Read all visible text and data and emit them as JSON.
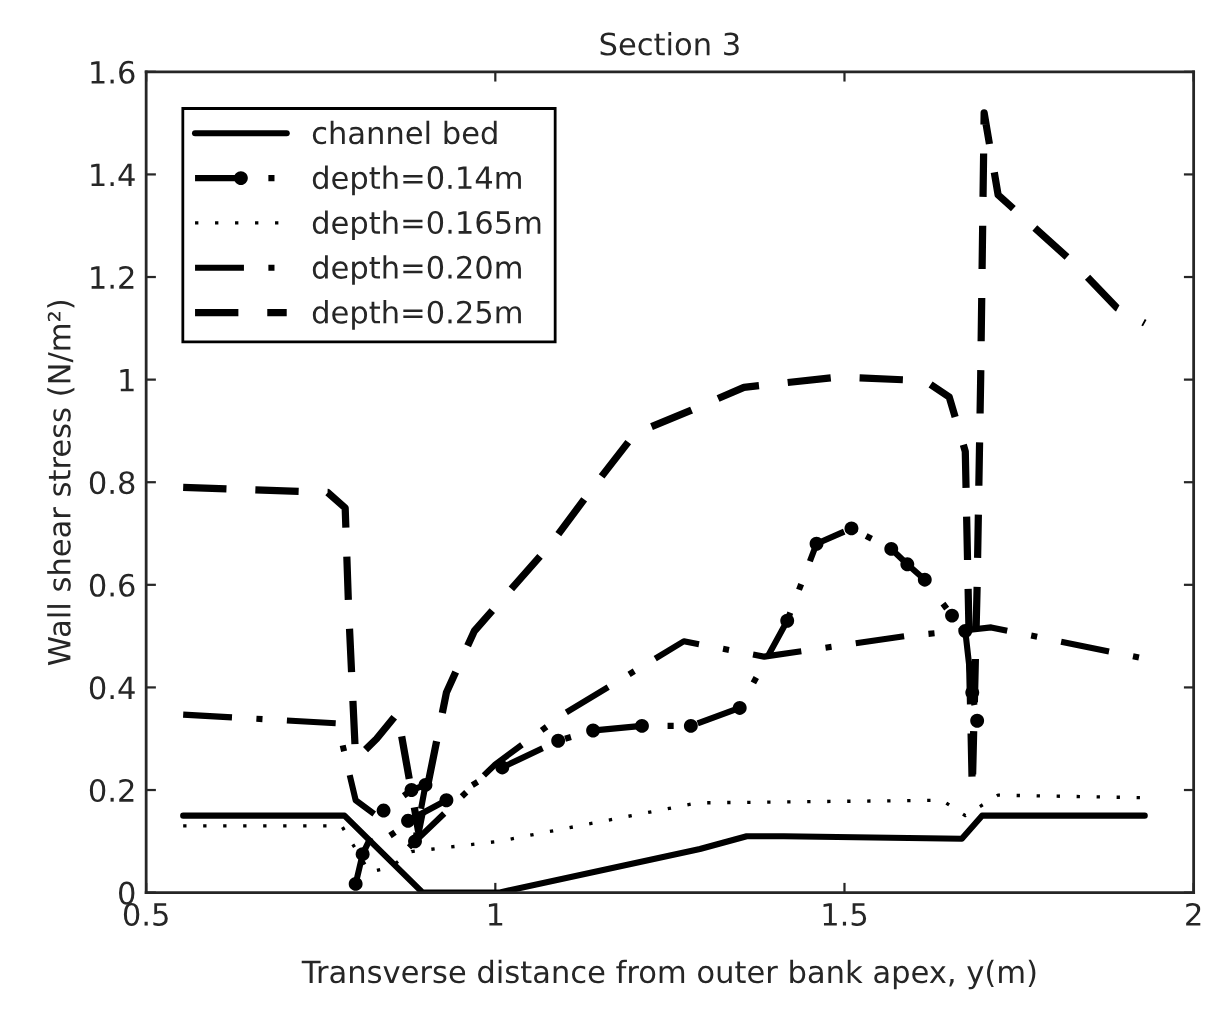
{
  "chart_data": {
    "type": "line",
    "title": "Section 3",
    "xlabel": "Transverse distance from outer bank apex, y(m)",
    "ylabel": "Wall shear stress (N/m²)",
    "xlim": [
      0.5,
      2
    ],
    "xticks": [
      0.5,
      1,
      1.5,
      2
    ],
    "ylim": [
      0,
      1.6
    ],
    "yticks": [
      0,
      0.2,
      0.4,
      0.6,
      0.8,
      1,
      1.2,
      1.4,
      1.6
    ],
    "grid": false,
    "legend": "top left",
    "series": [
      {
        "name": "channel bed",
        "color": "#000000",
        "line_style": "solid",
        "marker": "none",
        "x": [
          0.553,
          0.784,
          0.896,
          1.005,
          1.293,
          1.36,
          1.413,
          1.668,
          1.697,
          1.93
        ],
        "values": [
          0.15,
          0.15,
          0.0,
          0.0,
          0.085,
          0.11,
          0.11,
          0.105,
          0.15,
          0.15
        ]
      },
      {
        "name": "depth=0.14m",
        "color": "#000000",
        "line_style": "dashdot",
        "marker": "circle",
        "x": [
          0.8,
          0.81,
          0.84,
          0.88,
          0.9,
          0.885,
          0.875,
          0.93,
          1.01,
          1.09,
          1.14,
          1.21,
          1.28,
          1.35,
          1.418,
          1.46,
          1.51,
          1.567,
          1.59,
          1.615,
          1.654,
          1.673,
          1.683,
          1.69
        ],
        "values": [
          0.017,
          0.075,
          0.16,
          0.2,
          0.21,
          0.1,
          0.14,
          0.18,
          0.244,
          0.296,
          0.316,
          0.325,
          0.325,
          0.36,
          0.53,
          0.68,
          0.71,
          0.67,
          0.64,
          0.61,
          0.54,
          0.51,
          0.39,
          0.335
        ]
      },
      {
        "name": "depth=0.165m",
        "color": "#000000",
        "line_style": "dotted",
        "marker": "none",
        "x": [
          0.553,
          0.78,
          0.82,
          0.85,
          0.88,
          1.005,
          1.29,
          1.64,
          1.673,
          1.72,
          1.93
        ],
        "values": [
          0.13,
          0.13,
          0.04,
          0.05,
          0.08,
          0.1,
          0.175,
          0.18,
          0.15,
          0.19,
          0.185
        ]
      },
      {
        "name": "depth=0.20m",
        "color": "#000000",
        "line_style": "dashdot",
        "marker": "none",
        "x": [
          0.553,
          0.774,
          0.8,
          0.84,
          0.87,
          1.0,
          1.1,
          1.27,
          1.385,
          1.587,
          1.663,
          1.71,
          1.93
        ],
        "values": [
          0.347,
          0.33,
          0.18,
          0.14,
          0.08,
          0.25,
          0.35,
          0.49,
          0.46,
          0.5,
          0.51,
          0.517,
          0.456
        ]
      },
      {
        "name": "depth=0.25m",
        "color": "#000000",
        "line_style": "dashed",
        "marker": "none",
        "x": [
          0.553,
          0.76,
          0.785,
          0.79,
          0.8,
          0.83,
          0.86,
          0.89,
          0.93,
          0.97,
          1.08,
          1.14,
          1.2,
          1.28,
          1.356,
          1.49,
          1.615,
          1.65,
          1.673,
          1.683,
          1.69,
          1.695,
          1.7,
          1.72,
          1.83,
          1.89,
          1.93
        ],
        "values": [
          0.79,
          0.78,
          0.75,
          0.55,
          0.26,
          0.3,
          0.35,
          0.12,
          0.39,
          0.51,
          0.68,
          0.79,
          0.895,
          0.94,
          0.985,
          1.005,
          0.998,
          0.966,
          0.86,
          0.2,
          0.6,
          1.0,
          1.52,
          1.36,
          1.225,
          1.14,
          1.11
        ]
      }
    ]
  }
}
